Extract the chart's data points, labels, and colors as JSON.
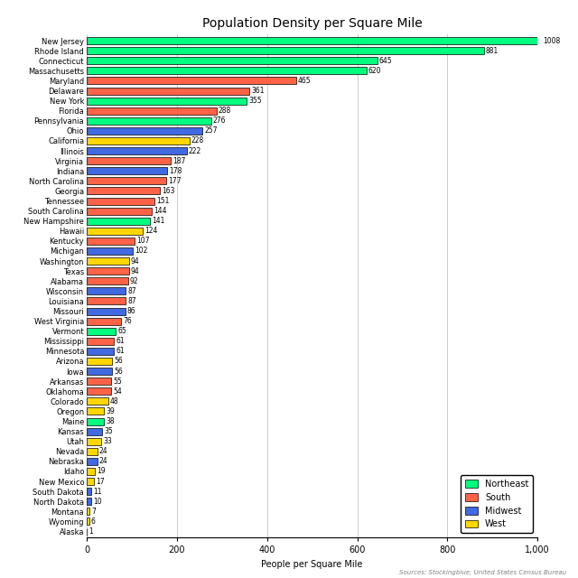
{
  "title": "Population Density per Square Mile",
  "xlabel": "People per Square Mile",
  "source": "Sources: Stockingblue, United States Census Bureau",
  "xlim": [
    0,
    1000
  ],
  "xticks": [
    0,
    200,
    400,
    600,
    800,
    1000
  ],
  "states": [
    "New Jersey",
    "Rhode Island",
    "Connecticut",
    "Massachusetts",
    "Maryland",
    "Delaware",
    "New York",
    "Florida",
    "Pennsylvania",
    "Ohio",
    "California",
    "Illinois",
    "Virginia",
    "Indiana",
    "North Carolina",
    "Georgia",
    "Tennessee",
    "South Carolina",
    "New Hampshire",
    "Hawaii",
    "Kentucky",
    "Michigan",
    "Washington",
    "Texas",
    "Alabama",
    "Wisconsin",
    "Louisiana",
    "Missouri",
    "West Virginia",
    "Vermont",
    "Mississippi",
    "Minnesota",
    "Arizona",
    "Iowa",
    "Arkansas",
    "Oklahoma",
    "Colorado",
    "Oregon",
    "Maine",
    "Kansas",
    "Utah",
    "Nevada",
    "Nebraska",
    "Idaho",
    "New Mexico",
    "South Dakota",
    "North Dakota",
    "Montana",
    "Wyoming",
    "Alaska"
  ],
  "values": [
    1008,
    881,
    645,
    620,
    465,
    361,
    355,
    288,
    276,
    257,
    228,
    222,
    187,
    178,
    177,
    163,
    151,
    144,
    141,
    124,
    107,
    102,
    94,
    94,
    92,
    87,
    87,
    86,
    76,
    65,
    61,
    61,
    56,
    56,
    55,
    54,
    48,
    39,
    38,
    35,
    33,
    24,
    24,
    19,
    17,
    11,
    10,
    7,
    6,
    1
  ],
  "regions": [
    "Northeast",
    "Northeast",
    "Northeast",
    "Northeast",
    "South",
    "South",
    "Northeast",
    "South",
    "Northeast",
    "Midwest",
    "West",
    "Midwest",
    "South",
    "Midwest",
    "South",
    "South",
    "South",
    "South",
    "Northeast",
    "West",
    "South",
    "Midwest",
    "West",
    "South",
    "South",
    "Midwest",
    "South",
    "Midwest",
    "South",
    "Northeast",
    "South",
    "Midwest",
    "West",
    "Midwest",
    "South",
    "South",
    "West",
    "West",
    "Northeast",
    "Midwest",
    "West",
    "West",
    "Midwest",
    "West",
    "West",
    "Midwest",
    "Midwest",
    "West",
    "West",
    "West"
  ],
  "region_colors": {
    "Northeast": "#00FF7F",
    "South": "#FF6347",
    "Midwest": "#4169E1",
    "West": "#FFD700"
  },
  "legend_order": [
    "Northeast",
    "South",
    "Midwest",
    "West"
  ],
  "bar_edgecolor": "black",
  "bar_linewidth": 0.5,
  "grid_color": "#cccccc",
  "background_color": "#ffffff",
  "title_fontsize": 10,
  "label_fontsize": 6.0,
  "value_fontsize": 5.5,
  "axis_fontsize": 7,
  "source_fontsize": 5
}
